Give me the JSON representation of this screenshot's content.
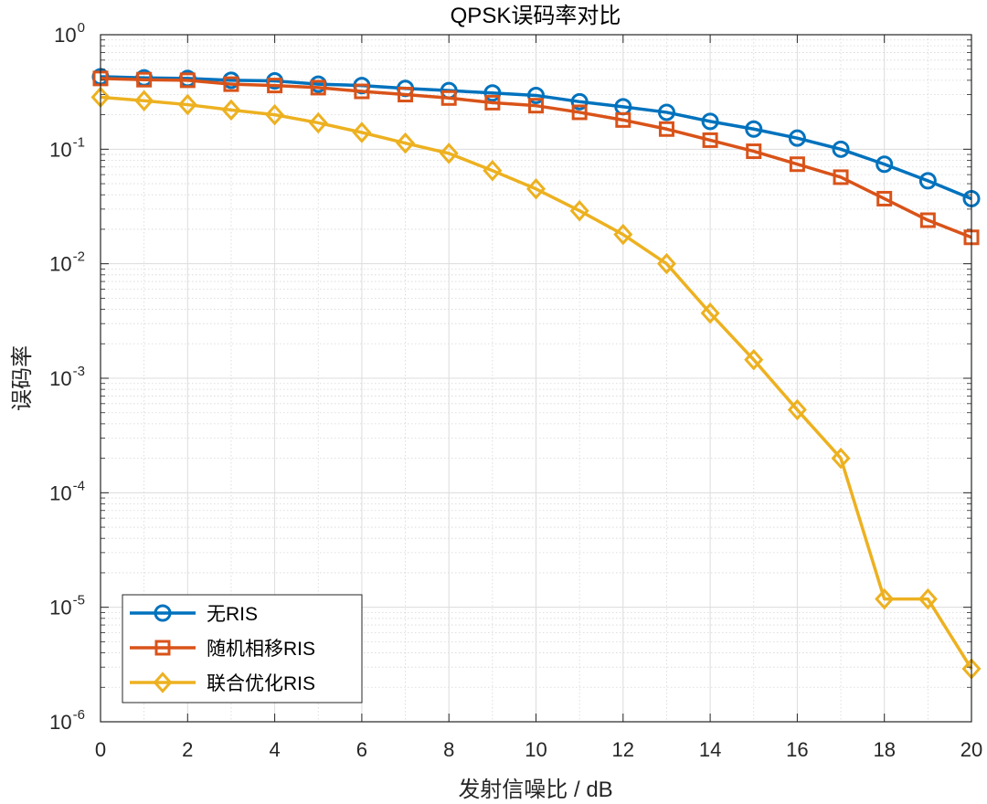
{
  "chart_data": {
    "type": "line",
    "title": "QPSK误码率对比",
    "xlabel": "发射信噪比 / dB",
    "ylabel": "误码率",
    "xlim": [
      0,
      20
    ],
    "ylim": [
      1e-06,
      1
    ],
    "yscale": "log",
    "grid": true,
    "legend_position": "bottom-left",
    "x": [
      0,
      1,
      2,
      3,
      4,
      5,
      6,
      7,
      8,
      9,
      10,
      11,
      12,
      13,
      14,
      15,
      16,
      17,
      18,
      19,
      20
    ],
    "x_ticks": [
      {
        "value": 0,
        "label": "0"
      },
      {
        "value": 2,
        "label": "2"
      },
      {
        "value": 4,
        "label": "4"
      },
      {
        "value": 6,
        "label": "6"
      },
      {
        "value": 8,
        "label": "8"
      },
      {
        "value": 10,
        "label": "10"
      },
      {
        "value": 12,
        "label": "12"
      },
      {
        "value": 14,
        "label": "14"
      },
      {
        "value": 16,
        "label": "16"
      },
      {
        "value": 18,
        "label": "18"
      },
      {
        "value": 20,
        "label": "20"
      }
    ],
    "y_ticks": [
      {
        "exp": 0,
        "base": "10",
        "sup": "0"
      },
      {
        "exp": -1,
        "base": "10",
        "sup": "-1"
      },
      {
        "exp": -2,
        "base": "10",
        "sup": "-2"
      },
      {
        "exp": -3,
        "base": "10",
        "sup": "-3"
      },
      {
        "exp": -4,
        "base": "10",
        "sup": "-4"
      },
      {
        "exp": -5,
        "base": "10",
        "sup": "-5"
      },
      {
        "exp": -6,
        "base": "10",
        "sup": "-6"
      }
    ],
    "series": [
      {
        "name": "无RIS",
        "color": "#0072BD",
        "marker": "circle",
        "values": [
          0.43,
          0.42,
          0.415,
          0.4,
          0.395,
          0.37,
          0.36,
          0.34,
          0.325,
          0.31,
          0.295,
          0.26,
          0.235,
          0.21,
          0.175,
          0.15,
          0.125,
          0.1,
          0.074,
          0.053,
          0.037
        ]
      },
      {
        "name": "随机相移RIS",
        "color": "#D95319",
        "marker": "square",
        "values": [
          0.415,
          0.405,
          0.4,
          0.37,
          0.36,
          0.345,
          0.32,
          0.3,
          0.28,
          0.255,
          0.24,
          0.21,
          0.18,
          0.15,
          0.12,
          0.096,
          0.074,
          0.057,
          0.037,
          0.024,
          0.017
        ]
      },
      {
        "name": "联合优化RIS",
        "color": "#EDB120",
        "marker": "diamond",
        "values": [
          0.285,
          0.265,
          0.245,
          0.22,
          0.2,
          0.17,
          0.14,
          0.113,
          0.092,
          0.065,
          0.045,
          0.029,
          0.018,
          0.01,
          0.0037,
          0.00145,
          0.00053,
          0.0002,
          1.18e-05,
          1.18e-05,
          2.9e-06
        ]
      }
    ]
  }
}
